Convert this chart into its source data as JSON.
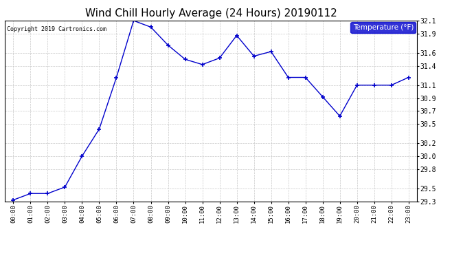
{
  "title": "Wind Chill Hourly Average (24 Hours) 20190112",
  "copyright_text": "Copyright 2019 Cartronics.com",
  "legend_label": "Temperature (°F)",
  "hours": [
    0,
    1,
    2,
    3,
    4,
    5,
    6,
    7,
    8,
    9,
    10,
    11,
    12,
    13,
    14,
    15,
    16,
    17,
    18,
    19,
    20,
    21,
    22,
    23
  ],
  "x_labels": [
    "00:00",
    "01:00",
    "02:00",
    "03:00",
    "04:00",
    "05:00",
    "06:00",
    "07:00",
    "08:00",
    "09:00",
    "10:00",
    "11:00",
    "12:00",
    "13:00",
    "14:00",
    "15:00",
    "16:00",
    "17:00",
    "18:00",
    "19:00",
    "20:00",
    "21:00",
    "22:00",
    "23:00"
  ],
  "values": [
    29.32,
    29.42,
    29.42,
    29.52,
    30.0,
    30.42,
    31.22,
    32.1,
    32.0,
    31.72,
    31.5,
    31.42,
    31.52,
    31.87,
    31.55,
    31.62,
    31.22,
    31.22,
    30.92,
    30.62,
    31.1,
    31.1,
    31.1,
    31.22
  ],
  "ylim": [
    29.3,
    32.1
  ],
  "yticks": [
    29.3,
    29.5,
    29.8,
    30.0,
    30.2,
    30.5,
    30.7,
    30.9,
    31.1,
    31.4,
    31.6,
    31.9,
    32.1
  ],
  "line_color": "#0000CC",
  "marker": "+",
  "background_color": "#ffffff",
  "plot_bg_color": "#ffffff",
  "grid_color": "#c8c8c8",
  "title_fontsize": 11,
  "legend_bg_color": "#0000CC",
  "legend_text_color": "#ffffff"
}
